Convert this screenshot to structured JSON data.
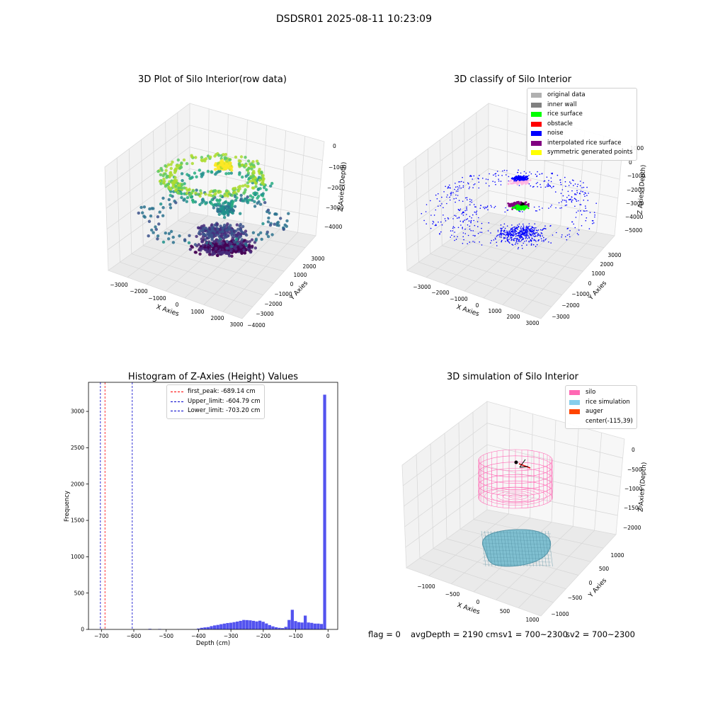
{
  "suptitle": "DSDSR01 2025-08-11 10:23:09",
  "chart_data": [
    {
      "type": "scatter",
      "title": "3D Plot of Silo Interior(row data)",
      "xlabel": "X Axies",
      "ylabel": "Y Axies",
      "zlabel": "Z Axies (Depth)",
      "x_ticks": [
        "−3000",
        "−2000",
        "−1000",
        "0",
        "1000",
        "2000",
        "3000"
      ],
      "y_ticks": [
        "−4000",
        "−3000",
        "−2000",
        "−1000",
        "0",
        "1000",
        "2000",
        "3000"
      ],
      "z_ticks": [
        "0",
        "−1000",
        "−2000",
        "−3000",
        "−4000"
      ],
      "colormap": "viridis",
      "clusters": [
        {
          "cx": 0,
          "cy": 0,
          "z": -4300,
          "r": 900
        },
        {
          "cx": -400,
          "cy": 300,
          "z": -3200,
          "r": 1400
        },
        {
          "cx": 0,
          "cy": 0,
          "z": -1200,
          "r": 1800
        }
      ]
    },
    {
      "type": "scatter",
      "title": "3D classify of Silo Interior",
      "xlabel": "X Axies",
      "ylabel": "Y Axies",
      "zlabel": "Z Axies (Depth)",
      "x_ticks": [
        "−3000",
        "−2000",
        "−1000",
        "0",
        "1000",
        "2000",
        "3000"
      ],
      "y_ticks": [
        "−3000",
        "−2000",
        "−1000",
        "0",
        "1000",
        "2000",
        "3000"
      ],
      "z_ticks": [
        "1000",
        "0",
        "−1000",
        "−2000",
        "−3000",
        "−4000",
        "−5000"
      ],
      "legend": [
        {
          "label": "original data",
          "color": "#b0b0b0"
        },
        {
          "label": "inner wall",
          "color": "#808080"
        },
        {
          "label": "rice surface",
          "color": "#00ff00"
        },
        {
          "label": "obstacle",
          "color": "#ff0000"
        },
        {
          "label": "noise",
          "color": "#0000ff"
        },
        {
          "label": "interpolated rice surface",
          "color": "#800080"
        },
        {
          "label": "symmetric generated points",
          "color": "#ffff00"
        }
      ]
    },
    {
      "type": "bar",
      "title": "Histogram of Z-Axies (Height) Values",
      "xlabel": "Depth (cm)",
      "ylabel": "Frequency",
      "xlim": [
        -740,
        30
      ],
      "ylim": [
        0,
        3400
      ],
      "x_ticks": [
        -700,
        -600,
        -500,
        -400,
        -300,
        -200,
        -100,
        0
      ],
      "y_ticks": [
        0,
        500,
        1000,
        1500,
        2000,
        2500,
        3000
      ],
      "bar_color": "#4a4aee",
      "bins": [
        {
          "x": -550,
          "v": 8
        },
        {
          "x": -520,
          "v": 6
        },
        {
          "x": -400,
          "v": 12
        },
        {
          "x": -390,
          "v": 22
        },
        {
          "x": -380,
          "v": 28
        },
        {
          "x": -370,
          "v": 32
        },
        {
          "x": -360,
          "v": 45
        },
        {
          "x": -350,
          "v": 55
        },
        {
          "x": -340,
          "v": 62
        },
        {
          "x": -330,
          "v": 72
        },
        {
          "x": -320,
          "v": 80
        },
        {
          "x": -310,
          "v": 88
        },
        {
          "x": -300,
          "v": 92
        },
        {
          "x": -290,
          "v": 100
        },
        {
          "x": -280,
          "v": 108
        },
        {
          "x": -270,
          "v": 118
        },
        {
          "x": -260,
          "v": 130
        },
        {
          "x": -250,
          "v": 128
        },
        {
          "x": -240,
          "v": 125
        },
        {
          "x": -230,
          "v": 118
        },
        {
          "x": -220,
          "v": 110
        },
        {
          "x": -210,
          "v": 120
        },
        {
          "x": -200,
          "v": 105
        },
        {
          "x": -190,
          "v": 82
        },
        {
          "x": -180,
          "v": 60
        },
        {
          "x": -170,
          "v": 42
        },
        {
          "x": -160,
          "v": 30
        },
        {
          "x": -150,
          "v": 22
        },
        {
          "x": -140,
          "v": 18
        },
        {
          "x": -130,
          "v": 35
        },
        {
          "x": -120,
          "v": 130
        },
        {
          "x": -110,
          "v": 270
        },
        {
          "x": -100,
          "v": 115
        },
        {
          "x": -90,
          "v": 100
        },
        {
          "x": -80,
          "v": 95
        },
        {
          "x": -70,
          "v": 190
        },
        {
          "x": -60,
          "v": 95
        },
        {
          "x": -50,
          "v": 90
        },
        {
          "x": -40,
          "v": 80
        },
        {
          "x": -30,
          "v": 80
        },
        {
          "x": -20,
          "v": 75
        },
        {
          "x": -10,
          "v": 3230
        }
      ],
      "vlines": [
        {
          "label": "first_peak: -689.14 cm",
          "x": -689.14,
          "color": "#ff0000"
        },
        {
          "label": "Upper_limit: -604.79 cm",
          "x": -604.79,
          "color": "#0000cc"
        },
        {
          "label": "Lower_limit: -703.20 cm",
          "x": -703.2,
          "color": "#0000cc"
        }
      ]
    },
    {
      "type": "scatter",
      "title": "3D simulation of Silo Interior",
      "xlabel": "X Axies",
      "ylabel": "Y Axies",
      "zlabel": "Z Axies (Depth)",
      "x_ticks": [
        "−1000",
        "−500",
        "0",
        "500",
        "1000"
      ],
      "y_ticks": [
        "−1000",
        "−500",
        "0",
        "500",
        "1000"
      ],
      "z_ticks": [
        "0",
        "−500",
        "−1000",
        "−1500",
        "−2000"
      ],
      "legend": [
        {
          "label": "silo",
          "color": "#ff69b4"
        },
        {
          "label": "rice simulation",
          "color": "#87ceeb"
        },
        {
          "label": "auger",
          "color": "#ff4500"
        },
        {
          "label": "center(-115,39)",
          "color": ""
        }
      ]
    }
  ],
  "status": {
    "flag": "flag = 0",
    "avg_depth": "avgDepth = 2190 cm",
    "sv1": "sv1 = 700~2300",
    "sv2": "sv2 = 700~2300"
  }
}
